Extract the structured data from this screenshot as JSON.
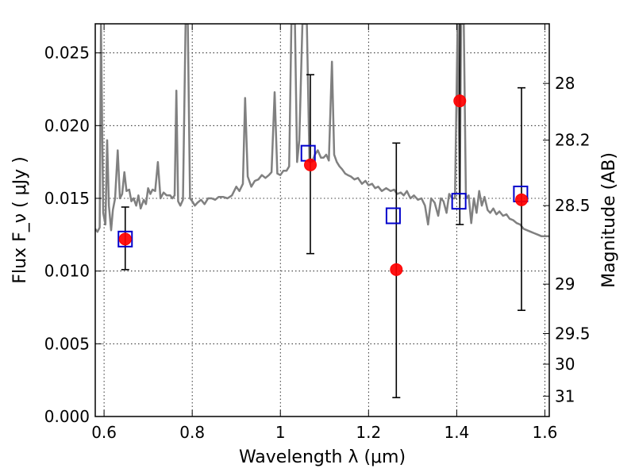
{
  "chart_data": {
    "type": "scatter",
    "xlabel": "Wavelength  λ (μm)",
    "ylabel": "Flux  F_ν  ( μJy )",
    "ylabel_right": "Magnitude (AB)",
    "xlim": [
      0.58,
      1.61
    ],
    "ylim": [
      0.0,
      0.027
    ],
    "grid": true,
    "x_ticks": [
      {
        "value": 0.6,
        "label": "0.6"
      },
      {
        "value": 0.8,
        "label": "0.8"
      },
      {
        "value": 1.0,
        "label": "1"
      },
      {
        "value": 1.2,
        "label": "1.2"
      },
      {
        "value": 1.4,
        "label": "1.4"
      },
      {
        "value": 1.6,
        "label": "1.6"
      }
    ],
    "y_ticks": [
      {
        "value": 0.0,
        "label": "0.000"
      },
      {
        "value": 0.005,
        "label": "0.005"
      },
      {
        "value": 0.01,
        "label": "0.010"
      },
      {
        "value": 0.015,
        "label": "0.015"
      },
      {
        "value": 0.02,
        "label": "0.020"
      },
      {
        "value": 0.025,
        "label": "0.025"
      }
    ],
    "right_ticks": [
      {
        "flux": 0.0229,
        "label": "28"
      },
      {
        "flux": 0.019,
        "label": "28.2"
      },
      {
        "flux": 0.0145,
        "label": "28.5"
      },
      {
        "flux": 0.0091,
        "label": "29"
      },
      {
        "flux": 0.0057,
        "label": "29.5"
      },
      {
        "flux": 0.0036,
        "label": "30"
      },
      {
        "flux": 0.0014,
        "label": "31"
      }
    ],
    "series": [
      {
        "kind": "line",
        "color": "#808080",
        "points": [
          [
            0.58,
            0.0129
          ],
          [
            0.585,
            0.0127
          ],
          [
            0.59,
            0.013
          ],
          [
            0.593,
            0.027
          ],
          [
            0.598,
            0.014
          ],
          [
            0.603,
            0.0132
          ],
          [
            0.607,
            0.019
          ],
          [
            0.611,
            0.0145
          ],
          [
            0.616,
            0.0128
          ],
          [
            0.62,
            0.0142
          ],
          [
            0.625,
            0.015
          ],
          [
            0.631,
            0.0183
          ],
          [
            0.636,
            0.015
          ],
          [
            0.641,
            0.0153
          ],
          [
            0.646,
            0.0168
          ],
          [
            0.651,
            0.0155
          ],
          [
            0.657,
            0.0156
          ],
          [
            0.662,
            0.0148
          ],
          [
            0.667,
            0.015
          ],
          [
            0.673,
            0.0145
          ],
          [
            0.678,
            0.0152
          ],
          [
            0.683,
            0.0143
          ],
          [
            0.69,
            0.0149
          ],
          [
            0.695,
            0.0146
          ],
          [
            0.7,
            0.0157
          ],
          [
            0.705,
            0.0153
          ],
          [
            0.71,
            0.0156
          ],
          [
            0.716,
            0.0155
          ],
          [
            0.722,
            0.0175
          ],
          [
            0.728,
            0.015
          ],
          [
            0.735,
            0.0154
          ],
          [
            0.742,
            0.0152
          ],
          [
            0.75,
            0.0152
          ],
          [
            0.755,
            0.015
          ],
          [
            0.76,
            0.0152
          ],
          [
            0.764,
            0.0224
          ],
          [
            0.768,
            0.0148
          ],
          [
            0.773,
            0.0145
          ],
          [
            0.779,
            0.0149
          ],
          [
            0.785,
            0.027
          ],
          [
            0.79,
            0.027
          ],
          [
            0.795,
            0.015
          ],
          [
            0.8,
            0.0148
          ],
          [
            0.806,
            0.0145
          ],
          [
            0.812,
            0.0147
          ],
          [
            0.82,
            0.0149
          ],
          [
            0.828,
            0.0146
          ],
          [
            0.836,
            0.015
          ],
          [
            0.844,
            0.015
          ],
          [
            0.852,
            0.0149
          ],
          [
            0.86,
            0.0151
          ],
          [
            0.87,
            0.0151
          ],
          [
            0.88,
            0.015
          ],
          [
            0.89,
            0.0152
          ],
          [
            0.9,
            0.0158
          ],
          [
            0.907,
            0.0155
          ],
          [
            0.915,
            0.016
          ],
          [
            0.92,
            0.0219
          ],
          [
            0.926,
            0.0165
          ],
          [
            0.934,
            0.0158
          ],
          [
            0.942,
            0.0162
          ],
          [
            0.95,
            0.0163
          ],
          [
            0.958,
            0.0166
          ],
          [
            0.966,
            0.0164
          ],
          [
            0.974,
            0.0166
          ],
          [
            0.98,
            0.0168
          ],
          [
            0.987,
            0.0223
          ],
          [
            0.993,
            0.0167
          ],
          [
            1.0,
            0.0166
          ],
          [
            1.007,
            0.0169
          ],
          [
            1.014,
            0.0169
          ],
          [
            1.02,
            0.0172
          ],
          [
            1.025,
            0.027
          ],
          [
            1.033,
            0.027
          ],
          [
            1.038,
            0.0175
          ],
          [
            1.043,
            0.019
          ],
          [
            1.05,
            0.027
          ],
          [
            1.06,
            0.027
          ],
          [
            1.066,
            0.0175
          ],
          [
            1.072,
            0.0175
          ],
          [
            1.078,
            0.018
          ],
          [
            1.085,
            0.0183
          ],
          [
            1.092,
            0.0178
          ],
          [
            1.098,
            0.0178
          ],
          [
            1.104,
            0.018
          ],
          [
            1.11,
            0.0176
          ],
          [
            1.117,
            0.0244
          ],
          [
            1.122,
            0.018
          ],
          [
            1.128,
            0.0175
          ],
          [
            1.134,
            0.0172
          ],
          [
            1.14,
            0.017
          ],
          [
            1.147,
            0.0167
          ],
          [
            1.153,
            0.0166
          ],
          [
            1.16,
            0.0165
          ],
          [
            1.168,
            0.0163
          ],
          [
            1.176,
            0.0164
          ],
          [
            1.185,
            0.016
          ],
          [
            1.193,
            0.0162
          ],
          [
            1.2,
            0.0159
          ],
          [
            1.208,
            0.016
          ],
          [
            1.215,
            0.0157
          ],
          [
            1.222,
            0.0158
          ],
          [
            1.23,
            0.0155
          ],
          [
            1.24,
            0.0157
          ],
          [
            1.25,
            0.0155
          ],
          [
            1.258,
            0.0156
          ],
          [
            1.265,
            0.0153
          ],
          [
            1.273,
            0.0154
          ],
          [
            1.28,
            0.0152
          ],
          [
            1.287,
            0.0155
          ],
          [
            1.295,
            0.015
          ],
          [
            1.303,
            0.0152
          ],
          [
            1.312,
            0.0149
          ],
          [
            1.32,
            0.015
          ],
          [
            1.328,
            0.0145
          ],
          [
            1.335,
            0.0132
          ],
          [
            1.342,
            0.015
          ],
          [
            1.35,
            0.0147
          ],
          [
            1.358,
            0.0138
          ],
          [
            1.364,
            0.015
          ],
          [
            1.37,
            0.0148
          ],
          [
            1.377,
            0.014
          ],
          [
            1.383,
            0.0153
          ],
          [
            1.39,
            0.015
          ],
          [
            1.396,
            0.015
          ],
          [
            1.402,
            0.027
          ],
          [
            1.407,
            0.015
          ],
          [
            1.41,
            0.027
          ],
          [
            1.416,
            0.027
          ],
          [
            1.421,
            0.015
          ],
          [
            1.427,
            0.0152
          ],
          [
            1.433,
            0.0133
          ],
          [
            1.439,
            0.015
          ],
          [
            1.445,
            0.014
          ],
          [
            1.451,
            0.0155
          ],
          [
            1.457,
            0.0145
          ],
          [
            1.463,
            0.0151
          ],
          [
            1.47,
            0.0142
          ],
          [
            1.476,
            0.014
          ],
          [
            1.483,
            0.0143
          ],
          [
            1.49,
            0.0139
          ],
          [
            1.497,
            0.0141
          ],
          [
            1.505,
            0.0138
          ],
          [
            1.513,
            0.0139
          ],
          [
            1.52,
            0.0136
          ],
          [
            1.528,
            0.0135
          ],
          [
            1.536,
            0.0133
          ],
          [
            1.544,
            0.0132
          ],
          [
            1.552,
            0.0129
          ],
          [
            1.56,
            0.0128
          ],
          [
            1.568,
            0.0127
          ],
          [
            1.576,
            0.0126
          ],
          [
            1.584,
            0.0125
          ],
          [
            1.592,
            0.0124
          ],
          [
            1.6,
            0.0124
          ],
          [
            1.61,
            0.0124
          ]
        ]
      },
      {
        "kind": "markers",
        "marker": "open-square",
        "color": "#0000cc",
        "points": [
          [
            0.648,
            0.0122
          ],
          [
            1.063,
            0.0181
          ],
          [
            1.256,
            0.0138
          ],
          [
            1.405,
            0.0148
          ],
          [
            1.545,
            0.0153
          ]
        ]
      },
      {
        "kind": "markers",
        "marker": "filled-circle",
        "color": "#ff0000",
        "points": [
          {
            "x": 0.648,
            "y": 0.0122,
            "err_lo": 0.0101,
            "err_hi": 0.0144
          },
          {
            "x": 1.068,
            "y": 0.0173,
            "err_lo": 0.0112,
            "err_hi": 0.0235
          },
          {
            "x": 1.263,
            "y": 0.0101,
            "err_lo": 0.0013,
            "err_hi": 0.0188
          },
          {
            "x": 1.407,
            "y": 0.0217,
            "err_lo": 0.0132,
            "err_hi": 0.027
          },
          {
            "x": 1.547,
            "y": 0.0149,
            "err_lo": 0.0073,
            "err_hi": 0.0226
          }
        ]
      }
    ]
  }
}
